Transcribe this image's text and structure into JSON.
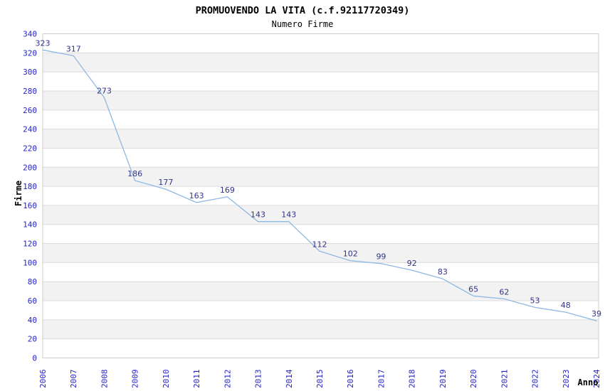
{
  "chart_data": {
    "type": "line",
    "title": "PROMUOVENDO LA VITA (c.f.92117720349)",
    "subtitle": "Numero Firme",
    "xlabel": "Anno",
    "ylabel": "Firme",
    "categories": [
      "2006",
      "2007",
      "2008",
      "2009",
      "2010",
      "2011",
      "2012",
      "2013",
      "2014",
      "2015",
      "2016",
      "2017",
      "2018",
      "2019",
      "2020",
      "2021",
      "2022",
      "2023",
      "2024"
    ],
    "series": [
      {
        "name": "Numero Firme",
        "values": [
          323,
          317,
          273,
          186,
          177,
          163,
          169,
          143,
          143,
          112,
          102,
          99,
          92,
          83,
          65,
          62,
          53,
          48,
          39
        ]
      }
    ],
    "ylim": [
      0,
      340
    ],
    "ytick_step": 20,
    "grid": true,
    "legend": "none",
    "show_point_labels": true,
    "colors": {
      "line": "#8cb8e4",
      "tick_label": "#2222cc",
      "point_label": "#333388",
      "title": "#333333",
      "subtitle": "#666666",
      "axis_title": "#333333",
      "grid_line": "#dcdcdc",
      "band_fill": "#f2f2f2",
      "plot_border": "#cccccc",
      "background": "#ffffff"
    }
  }
}
